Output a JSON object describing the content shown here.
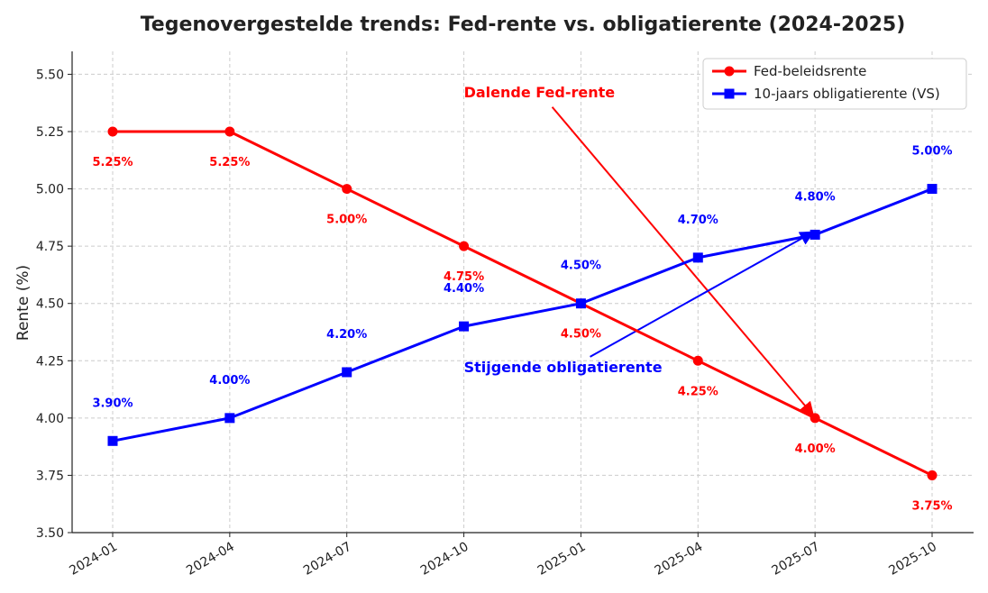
{
  "chart_data": {
    "type": "line",
    "title": "Tegenovergestelde trends: Fed-rente vs. obligatierente (2024-2025)",
    "xlabel": "",
    "ylabel": "Rente (%)",
    "categories": [
      "2024-01",
      "2024-04",
      "2024-07",
      "2024-10",
      "2025-01",
      "2025-04",
      "2025-07",
      "2025-10"
    ],
    "ylim": [
      3.5,
      5.6
    ],
    "yticks": [
      "3.50",
      "3.75",
      "4.00",
      "4.25",
      "4.50",
      "4.75",
      "5.00",
      "5.25",
      "5.50"
    ],
    "grid": true,
    "legend_position": "top-right",
    "series": [
      {
        "name": "Fed-beleidsrente",
        "color": "#ff0000",
        "marker": "circle",
        "values": [
          5.25,
          5.25,
          5.0,
          4.75,
          4.5,
          4.25,
          4.0,
          3.75
        ],
        "labels": [
          "5.25%",
          "5.25%",
          "5.00%",
          "4.75%",
          "4.50%",
          "4.25%",
          "4.00%",
          "3.75%"
        ]
      },
      {
        "name": "10-jaars obligatierente (VS)",
        "color": "#0000ff",
        "marker": "square",
        "values": [
          3.9,
          4.0,
          4.2,
          4.4,
          4.5,
          4.7,
          4.8,
          5.0
        ],
        "labels": [
          "3.90%",
          "4.00%",
          "4.20%",
          "4.40%",
          "4.50%",
          "4.70%",
          "4.80%",
          "5.00%"
        ]
      }
    ],
    "annotations": [
      {
        "text": "Dalende Fed-rente",
        "color": "#ff0000",
        "from": [
          "2024-10",
          5.42
        ],
        "to": [
          "2025-07",
          4.0
        ]
      },
      {
        "text": "Stijgende obligatierente",
        "color": "#0000ff",
        "from": [
          "2024-10",
          4.22
        ],
        "to": [
          "2025-07",
          4.8
        ]
      }
    ]
  }
}
